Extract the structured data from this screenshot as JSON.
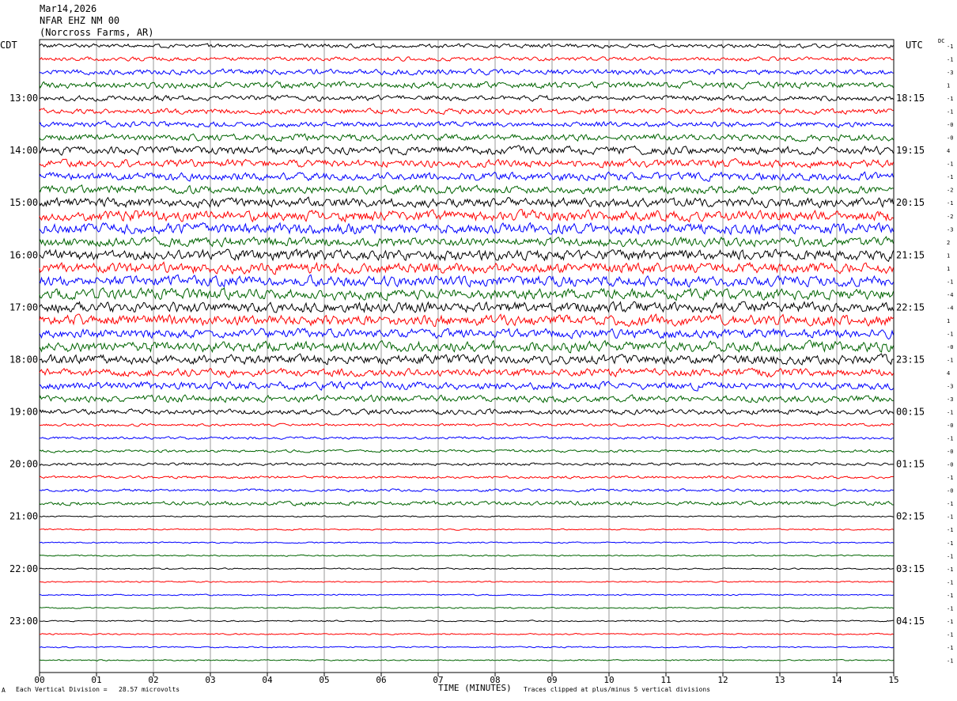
{
  "header": {
    "date": "Mar14,2026",
    "station": "NFAR EHZ NM 00",
    "location": "(Norcross Farms, AR)"
  },
  "left_axis_label": "CDT",
  "right_axis_label": "UTC",
  "dc_label": "DC",
  "footer": {
    "scale_note": "Each Vertical Division =   28.57 microvolts",
    "x_axis_title": "TIME (MINUTES)",
    "clip_note": "Traces clipped at plus/minus 5 vertical divisions",
    "corner_mark": "A"
  },
  "colors": {
    "trace_cycle": [
      "#000000",
      "#ff0000",
      "#0000ff",
      "#006400"
    ],
    "grid": "#7f7f7f"
  },
  "chart_data": {
    "type": "line",
    "title": "Mar14,2026 NFAR EHZ NM 00 (Norcross Farms, AR)",
    "xlabel": "TIME (MINUTES)",
    "x_ticks": [
      "00",
      "01",
      "02",
      "03",
      "04",
      "05",
      "06",
      "07",
      "08",
      "09",
      "10",
      "11",
      "12",
      "13",
      "14",
      "15"
    ],
    "xlim": [
      0,
      15
    ],
    "left_time_labels": [
      "13:00",
      "14:00",
      "15:00",
      "16:00",
      "17:00",
      "18:00",
      "19:00",
      "20:00",
      "21:00",
      "22:00",
      "23:00"
    ],
    "right_time_labels": [
      "18:15",
      "19:15",
      "20:15",
      "21:15",
      "22:15",
      "23:15",
      "00:15",
      "01:15",
      "02:15",
      "03:15",
      "04:15"
    ],
    "traces_per_hour": 4,
    "trace_count": 48,
    "dc_offsets": [
      "-1",
      "-1",
      "-3",
      "1",
      "-1",
      "-1",
      "-0",
      "-0",
      "4",
      "-1",
      "-1",
      "-2",
      "-1",
      "-2",
      "-3",
      "2",
      "1",
      "1",
      "-1",
      "-4",
      "-4",
      "1",
      "-1",
      "-0",
      "-1",
      "4",
      "-3",
      "-3",
      "-1",
      "-0",
      "-1",
      "-0",
      "-0",
      "-1",
      "-0",
      "-1",
      "-1",
      "-1",
      "-1",
      "-1",
      "-1",
      "-1",
      "-1",
      "-1",
      "-1",
      "-1",
      "-1",
      "-1"
    ],
    "trace_amplitude": [
      3,
      3,
      4,
      5,
      4,
      4,
      4,
      5,
      6,
      6,
      6,
      6,
      7,
      8,
      8,
      7,
      8,
      8,
      8,
      8,
      8,
      8,
      7,
      8,
      7,
      6,
      6,
      5,
      4,
      2,
      2,
      2,
      2,
      2,
      2,
      3,
      1,
      1,
      1,
      1,
      1,
      1,
      1,
      1,
      1,
      1,
      1,
      1
    ]
  }
}
